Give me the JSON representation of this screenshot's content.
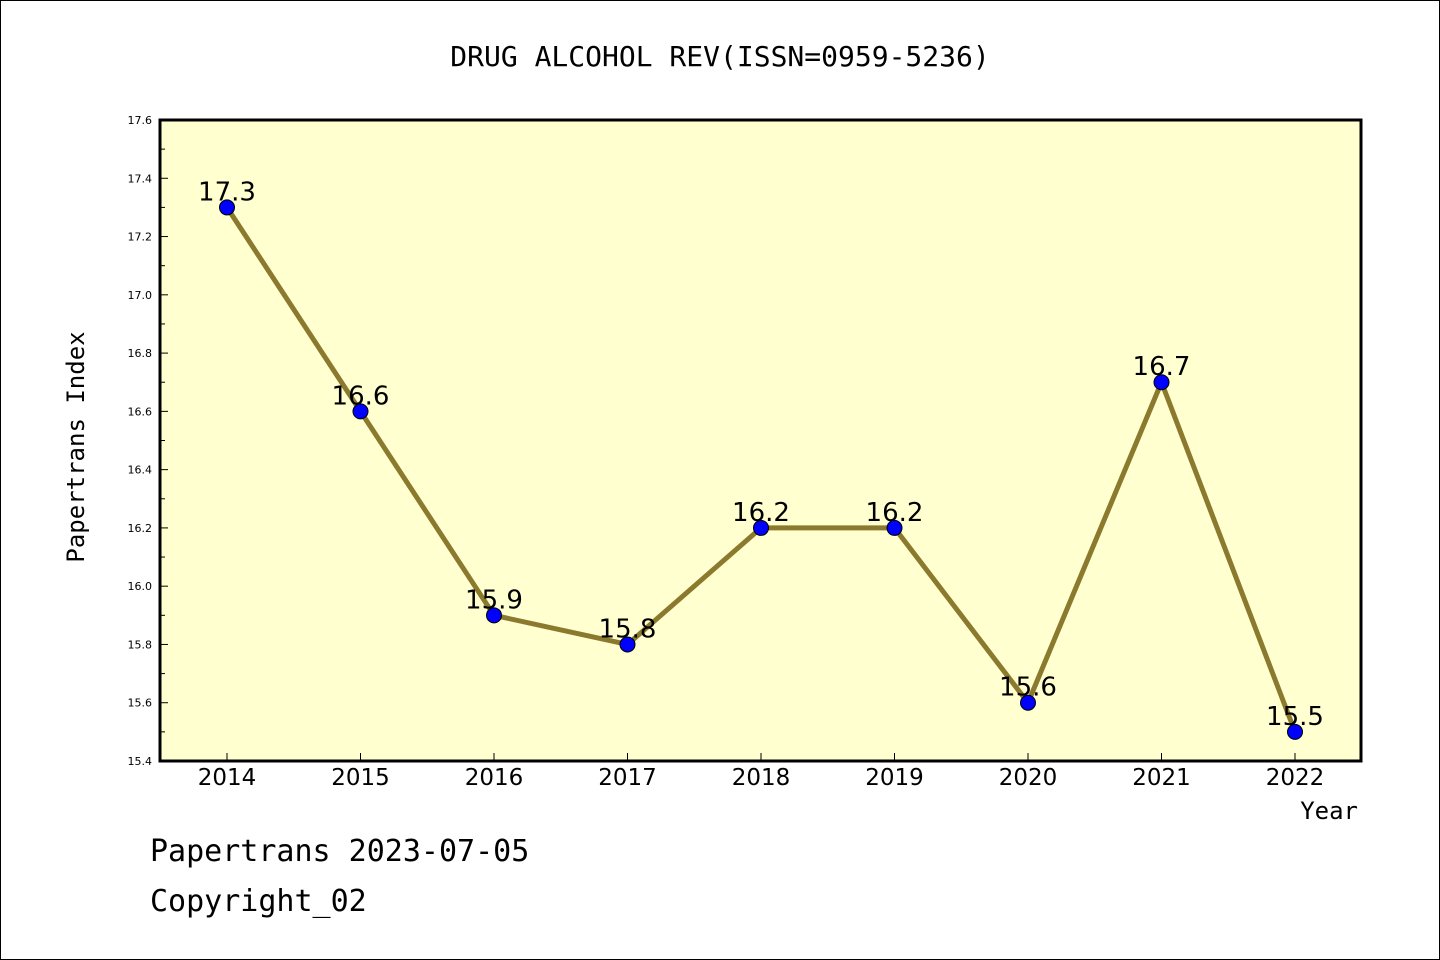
{
  "chart_data": {
    "type": "line",
    "title": "DRUG ALCOHOL REV(ISSN=0959-5236)",
    "xlabel": "Year",
    "ylabel": "Papertrans Index",
    "categories": [
      "2014",
      "2015",
      "2016",
      "2017",
      "2018",
      "2019",
      "2020",
      "2021",
      "2022"
    ],
    "series": [
      {
        "values": [
          17.3,
          16.6,
          15.9,
          15.8,
          16.2,
          16.2,
          15.6,
          16.7,
          15.5
        ]
      }
    ],
    "data_labels": [
      "17.3",
      "16.6",
      "15.9",
      "15.8",
      "16.2",
      "16.2",
      "15.6",
      "16.7",
      "15.5"
    ],
    "ylim": [
      15.4,
      17.6
    ],
    "yticks": [
      "15.4",
      "15.6",
      "15.8",
      "16.0",
      "16.2",
      "16.4",
      "16.6",
      "16.8",
      "17.0",
      "17.2",
      "17.4",
      "17.6"
    ],
    "grid": false,
    "colors": {
      "plot_background": "#ffffd0",
      "line": "#8b7a2e",
      "marker": "#0000ff"
    }
  },
  "footer": {
    "date_line": "Papertrans 2023-07-05",
    "copyright": "Copyright_02"
  }
}
